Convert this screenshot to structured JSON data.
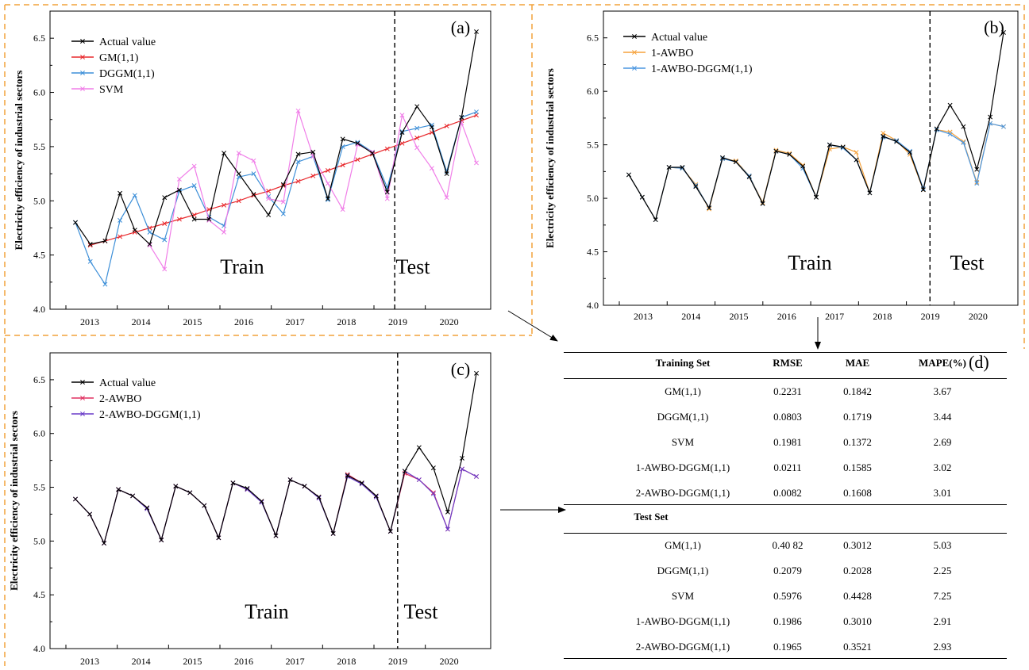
{
  "colors": {
    "actual": "#000000",
    "gm": "#e8282c",
    "dggm": "#3d8fd8",
    "svm": "#f07ee8",
    "awbo1": "#f5a23c",
    "awbo1_dggm": "#4a96e0",
    "awbo2": "#e03060",
    "awbo2_dggm": "#6a3cc8",
    "frame_dash": "#f2a23a"
  },
  "chart_data": [
    {
      "type": "line",
      "panel_label": "(a)",
      "ylabel": "Electricity efficiency of industrial sectors",
      "ylim": [
        4.0,
        6.75
      ],
      "yticks": [
        "4.0",
        "4.5",
        "5.0",
        "5.5",
        "6.0",
        "6.5"
      ],
      "x_tick_labels": [
        "2013",
        "2014",
        "2015",
        "2016",
        "2017",
        "2018",
        "2019",
        "2020"
      ],
      "split_label_left": "Train",
      "split_label_right": "Test",
      "legend_position": "top-left",
      "grid": false,
      "series": [
        {
          "name": "Actual value",
          "color_key": "actual",
          "values": [
            4.8,
            4.6,
            4.63,
            5.07,
            4.73,
            4.6,
            5.03,
            5.1,
            4.83,
            4.83,
            5.44,
            5.25,
            5.06,
            4.87,
            5.15,
            5.43,
            5.45,
            5.02,
            5.57,
            5.53,
            5.44,
            5.08,
            5.63,
            5.87,
            5.68,
            5.25,
            5.77,
            6.56
          ]
        },
        {
          "name": "GM(1,1)",
          "color_key": "gm",
          "values": [
            null,
            4.59,
            4.63,
            4.67,
            4.71,
            4.75,
            4.79,
            4.83,
            4.87,
            4.92,
            4.96,
            5.0,
            5.05,
            5.09,
            5.14,
            5.18,
            5.23,
            5.28,
            5.33,
            5.38,
            5.43,
            5.48,
            5.53,
            5.58,
            5.63,
            5.69,
            5.74,
            5.79
          ]
        },
        {
          "name": "DGGM(1,1)",
          "color_key": "dggm",
          "values": [
            4.8,
            4.44,
            4.23,
            4.82,
            5.05,
            4.71,
            4.64,
            5.09,
            5.14,
            4.85,
            4.77,
            5.22,
            5.25,
            5.04,
            4.88,
            5.36,
            5.41,
            5.01,
            5.5,
            5.54,
            5.45,
            5.12,
            5.64,
            5.67,
            5.7,
            5.27,
            5.77,
            5.82
          ]
        },
        {
          "name": "SVM",
          "color_key": "svm",
          "values": [
            null,
            null,
            null,
            null,
            null,
            4.59,
            4.37,
            5.2,
            5.32,
            4.82,
            4.71,
            5.44,
            5.37,
            5.02,
            4.99,
            5.83,
            5.41,
            5.16,
            4.92,
            5.52,
            5.45,
            5.02,
            5.79,
            5.49,
            5.3,
            5.03,
            5.72,
            5.35
          ]
        }
      ]
    },
    {
      "type": "line",
      "panel_label": "(b)",
      "ylabel": "Electricity efficiency of industrial sectors",
      "ylim": [
        4.0,
        6.75
      ],
      "yticks": [
        "4.0",
        "4.5",
        "5.0",
        "5.5",
        "6.0",
        "6.5"
      ],
      "x_tick_labels": [
        "2013",
        "2014",
        "2015",
        "2016",
        "2017",
        "2018",
        "2019",
        "2020"
      ],
      "split_label_left": "Train",
      "split_label_right": "Test",
      "legend_position": "top-left",
      "grid": false,
      "series": [
        {
          "name": "Actual value",
          "color_key": "actual",
          "values": [
            5.22,
            5.01,
            4.8,
            5.29,
            5.29,
            5.11,
            4.91,
            5.38,
            5.34,
            5.2,
            4.95,
            5.44,
            5.41,
            5.3,
            5.01,
            5.5,
            5.48,
            5.36,
            5.05,
            5.58,
            5.53,
            5.43,
            5.08,
            5.65,
            5.87,
            5.67,
            5.27,
            5.76,
            6.55
          ]
        },
        {
          "name": "1-AWBO",
          "color_key": "awbo1",
          "values": [
            5.22,
            5.01,
            4.8,
            5.29,
            5.28,
            5.13,
            4.9,
            5.37,
            5.35,
            5.21,
            4.96,
            5.45,
            5.42,
            5.31,
            5.01,
            5.46,
            5.48,
            5.43,
            5.05,
            5.61,
            5.54,
            5.41,
            5.08,
            5.64,
            5.62,
            5.53,
            5.15,
            5.7,
            5.67
          ]
        },
        {
          "name": "1-AWBO-DGGM(1,1)",
          "color_key": "awbo1_dggm",
          "values": [
            5.22,
            5.01,
            4.8,
            5.29,
            5.28,
            5.12,
            4.91,
            5.37,
            5.34,
            5.21,
            4.95,
            5.44,
            5.41,
            5.28,
            5.01,
            5.5,
            5.47,
            5.36,
            5.05,
            5.57,
            5.54,
            5.44,
            5.09,
            5.64,
            5.6,
            5.52,
            5.14,
            5.7,
            5.67
          ]
        }
      ]
    },
    {
      "type": "line",
      "panel_label": "(c)",
      "ylabel": "Electricity efficiency of industrial sectors",
      "ylim": [
        4.0,
        6.75
      ],
      "yticks": [
        "4.0",
        "4.5",
        "5.0",
        "5.5",
        "6.0",
        "6.5"
      ],
      "x_tick_labels": [
        "2013",
        "2014",
        "2015",
        "2016",
        "2017",
        "2018",
        "2019",
        "2020"
      ],
      "split_label_left": "Train",
      "split_label_right": "Test",
      "legend_position": "top-left",
      "grid": false,
      "series": [
        {
          "name": "Actual value",
          "color_key": "actual",
          "values": [
            5.39,
            5.25,
            4.98,
            5.48,
            5.42,
            5.31,
            5.01,
            5.51,
            5.45,
            5.33,
            5.03,
            5.54,
            5.49,
            5.37,
            5.05,
            5.57,
            5.51,
            5.41,
            5.07,
            5.61,
            5.54,
            5.42,
            5.09,
            5.65,
            5.87,
            5.68,
            5.27,
            5.77,
            6.56
          ]
        },
        {
          "name": "2-AWBO",
          "color_key": "awbo2",
          "values": [
            5.39,
            5.25,
            4.98,
            5.48,
            5.42,
            5.31,
            5.01,
            5.51,
            5.45,
            5.33,
            5.03,
            5.54,
            5.48,
            5.37,
            5.05,
            5.57,
            5.51,
            5.41,
            5.07,
            5.62,
            5.54,
            5.42,
            5.09,
            5.63,
            5.57,
            5.45,
            5.11,
            5.67,
            5.6
          ]
        },
        {
          "name": "2-AWBO-DGGM(1,1)",
          "color_key": "awbo2_dggm",
          "values": [
            5.39,
            5.25,
            4.98,
            5.48,
            5.42,
            5.3,
            5.01,
            5.51,
            5.45,
            5.33,
            5.03,
            5.54,
            5.48,
            5.36,
            5.05,
            5.57,
            5.51,
            5.4,
            5.07,
            5.6,
            5.53,
            5.41,
            5.09,
            5.65,
            5.57,
            5.44,
            5.11,
            5.67,
            5.6
          ]
        }
      ]
    },
    {
      "type": "table",
      "panel_label": "(d)",
      "columns": [
        "Training Set",
        "RMSE",
        "MAE",
        "MAPE(%)"
      ],
      "training_rows": [
        [
          "GM(1,1)",
          "0.2231",
          "0.1842",
          "3.67"
        ],
        [
          "DGGM(1,1)",
          "0.0803",
          "0.1719",
          "3.44"
        ],
        [
          "SVM",
          "0.1981",
          "0.1372",
          "2.69"
        ],
        [
          "1-AWBO-DGGM(1,1)",
          "0.0211",
          "0.1585",
          "3.02"
        ],
        [
          "2-AWBO-DGGM(1,1)",
          "0.0082",
          "0.1608",
          "3.01"
        ]
      ],
      "test_heading": "Test Set",
      "test_rows": [
        [
          "GM(1,1)",
          "0.40 82",
          "0.3012",
          "5.03"
        ],
        [
          "DGGM(1,1)",
          "0.2079",
          "0.2028",
          "2.25"
        ],
        [
          "SVM",
          "0.5976",
          "0.4428",
          "7.25"
        ],
        [
          "1-AWBO-DGGM(1,1)",
          "0.1986",
          "0.3010",
          "2.91"
        ],
        [
          "2-AWBO-DGGM(1,1)",
          "0.1965",
          "0.3521",
          "2.93"
        ]
      ]
    }
  ]
}
